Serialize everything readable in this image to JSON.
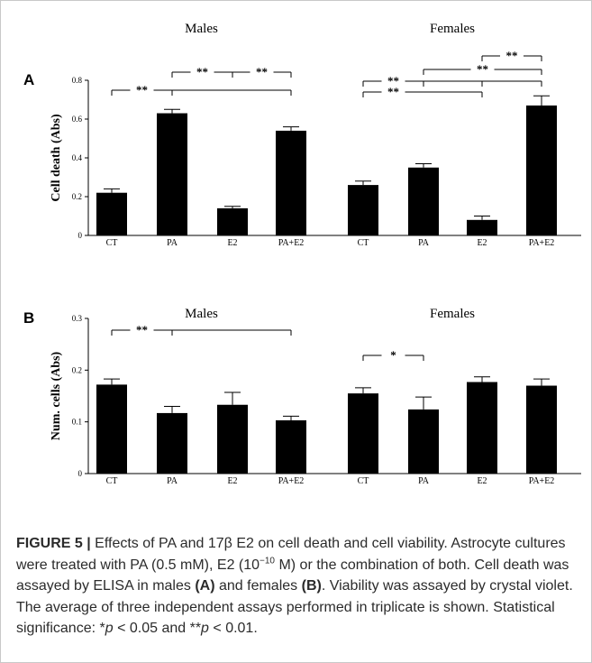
{
  "panels": [
    {
      "label": "A",
      "ylabel": "Cell death (Abs)",
      "yticks": [
        "0",
        "0.2",
        "0.4",
        "0.6",
        "0.8"
      ]
    },
    {
      "label": "B",
      "ylabel": "Num. cells (Abs)",
      "yticks": [
        "0",
        "0.1",
        "0.2",
        "0.3"
      ]
    }
  ],
  "chart_data": [
    {
      "type": "bar",
      "panel": "A",
      "ylabel": "Cell death (Abs)",
      "ylim": [
        0,
        0.8
      ],
      "groups": [
        {
          "name": "Males",
          "categories": [
            "CT",
            "PA",
            "E2",
            "PA+E2"
          ],
          "values": [
            0.22,
            0.63,
            0.14,
            0.54
          ],
          "errors": [
            0.02,
            0.02,
            0.01,
            0.02
          ]
        },
        {
          "name": "Females",
          "categories": [
            "CT",
            "PA",
            "E2",
            "PA+E2"
          ],
          "values": [
            0.26,
            0.35,
            0.08,
            0.67
          ],
          "errors": [
            0.02,
            0.02,
            0.02,
            0.05
          ]
        }
      ],
      "significance": [
        {
          "group": "Males",
          "from": "CT",
          "to": "PA+E2",
          "label": "**"
        },
        {
          "group": "Males",
          "from": "PA",
          "to": "E2",
          "label": "**"
        },
        {
          "group": "Males",
          "from": "E2",
          "to": "PA+E2",
          "label": "**"
        },
        {
          "group": "Females",
          "from": "CT",
          "to": "PA+E2",
          "label": "**"
        },
        {
          "group": "Females",
          "from": "CT",
          "to": "E2",
          "label": "**"
        },
        {
          "group": "Females",
          "from": "PA",
          "to": "PA+E2",
          "label": "**"
        },
        {
          "group": "Females",
          "from": "E2",
          "to": "PA+E2",
          "label": "**"
        }
      ]
    },
    {
      "type": "bar",
      "panel": "B",
      "ylabel": "Num. cells (Abs)",
      "ylim": [
        0,
        0.3
      ],
      "groups": [
        {
          "name": "Males",
          "categories": [
            "CT",
            "PA",
            "E2",
            "PA+E2"
          ],
          "values": [
            0.172,
            0.117,
            0.133,
            0.103
          ],
          "errors": [
            0.011,
            0.013,
            0.024,
            0.008
          ]
        },
        {
          "name": "Females",
          "categories": [
            "CT",
            "PA",
            "E2",
            "PA+E2"
          ],
          "values": [
            0.155,
            0.124,
            0.177,
            0.17
          ],
          "errors": [
            0.011,
            0.024,
            0.01,
            0.013
          ]
        }
      ],
      "significance": [
        {
          "group": "Males",
          "from": "CT",
          "to": "PA+E2",
          "label": "**"
        },
        {
          "group": "Females",
          "from": "CT",
          "to": "PA",
          "label": "*"
        }
      ]
    }
  ],
  "caption": {
    "figure_label": "FIGURE 5 |",
    "t1": " Effects of PA and 17β E2 on cell death and cell viability. Astrocyte cultures were treated with PA (0.5 mM), E2 (10",
    "exp": "−10",
    "t2": " M) or the combination of both. Cell death was assayed by ELISA in males ",
    "ref_a": "(A)",
    "t3": " and females ",
    "ref_b": "(B)",
    "t4": ". Viability was assayed by crystal violet. The average of three independent assays performed in triplicate is shown. Statistical significance: *",
    "p1": "p",
    "t5": " < 0.05 and **",
    "p2": "p",
    "t6": " < 0.01."
  }
}
